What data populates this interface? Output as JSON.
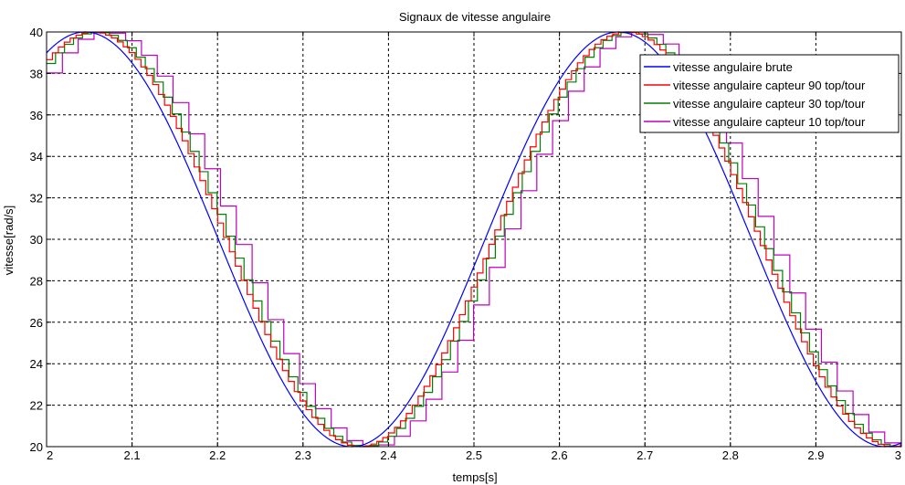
{
  "chart_data": {
    "type": "line",
    "title": "Signaux de vitesse angulaire",
    "xlabel": "temps[s]",
    "ylabel": "vitesse[rad/s]",
    "xlim": [
      2,
      3
    ],
    "ylim": [
      20,
      40
    ],
    "grid": true,
    "legend_position": "top-right",
    "x_ticks": [
      "2",
      "2.1",
      "2.2",
      "2.3",
      "2.4",
      "2.5",
      "2.6",
      "2.7",
      "2.8",
      "2.9",
      "3"
    ],
    "y_ticks": [
      "20",
      "22",
      "24",
      "26",
      "28",
      "30",
      "32",
      "34",
      "36",
      "38",
      "40"
    ],
    "signal": {
      "mean": 30,
      "amplitude": 10,
      "period": 0.624,
      "peak_time": 2.045
    },
    "series": [
      {
        "name": "vitesse angulaire brute",
        "color": "#0000FF",
        "style": "continuous"
      },
      {
        "name": "vitesse angulaire capteur 90 top/tour",
        "color": "#FF0000",
        "style": "step",
        "step_dt": 0.0069
      },
      {
        "name": "vitesse angulaire capteur 30 top/tour",
        "color": "#008000",
        "style": "step",
        "step_dt": 0.0105
      },
      {
        "name": "vitesse angulaire capteur 10 top/tour",
        "color": "#BF00BF",
        "style": "step",
        "step_dt": 0.0185
      }
    ]
  }
}
